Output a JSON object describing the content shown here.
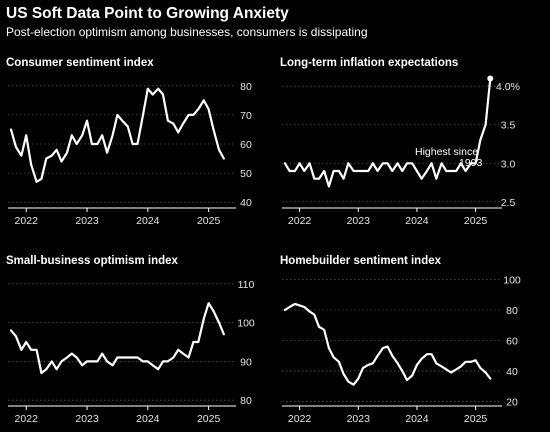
{
  "headline": "US Soft Data Point to Growing Anxiety",
  "subhead": "Post-election optimism among businesses, consumers is dissipating",
  "colors": {
    "background": "#000000",
    "line": "#ffffff",
    "grid": "#555555"
  },
  "chart_data": [
    {
      "type": "line",
      "title": "Consumer sentiment index",
      "xticks": [
        "2022",
        "2023",
        "2024",
        "2025"
      ],
      "xlim": [
        2021.7,
        2025.45
      ],
      "yticks": [
        "40",
        "50",
        "60",
        "70",
        "80"
      ],
      "ylim": [
        38,
        82
      ],
      "series": [
        {
          "x": [
            2021.75,
            2021.83,
            2021.92,
            2022.0,
            2022.08,
            2022.17,
            2022.25,
            2022.33,
            2022.42,
            2022.5,
            2022.58,
            2022.67,
            2022.75,
            2022.83,
            2022.92,
            2023.0,
            2023.08,
            2023.17,
            2023.25,
            2023.33,
            2023.42,
            2023.5,
            2023.58,
            2023.67,
            2023.75,
            2023.83,
            2023.92,
            2024.0,
            2024.08,
            2024.17,
            2024.25,
            2024.33,
            2024.42,
            2024.5,
            2024.58,
            2024.67,
            2024.75,
            2024.83,
            2024.92,
            2025.0,
            2025.08,
            2025.17,
            2025.25
          ],
          "y": [
            65,
            59,
            56,
            63,
            53,
            47,
            48,
            55,
            56,
            58,
            54,
            57,
            63,
            60,
            63,
            68,
            60,
            60,
            63,
            57,
            63,
            70,
            68,
            66,
            60,
            60,
            70,
            79,
            77,
            79,
            77,
            68,
            67,
            64,
            67,
            70,
            70,
            72,
            75,
            72,
            65,
            58,
            55
          ]
        }
      ]
    },
    {
      "type": "line",
      "title": "Long-term inflation expectations",
      "xticks": [
        "2022",
        "2023",
        "2024",
        "2025"
      ],
      "xlim": [
        2021.7,
        2025.45
      ],
      "yticks": [
        "2.5",
        "3.0",
        "3.5",
        "4.0%"
      ],
      "ylim": [
        2.42,
        4.08
      ],
      "annotation": "Highest since 1993",
      "series": [
        {
          "x": [
            2021.75,
            2021.83,
            2021.92,
            2022.0,
            2022.08,
            2022.17,
            2022.25,
            2022.33,
            2022.42,
            2022.5,
            2022.58,
            2022.67,
            2022.75,
            2022.83,
            2022.92,
            2023.0,
            2023.08,
            2023.17,
            2023.25,
            2023.33,
            2023.42,
            2023.5,
            2023.58,
            2023.67,
            2023.75,
            2023.83,
            2023.92,
            2024.0,
            2024.08,
            2024.17,
            2024.25,
            2024.33,
            2024.42,
            2024.5,
            2024.58,
            2024.67,
            2024.75,
            2024.83,
            2024.92,
            2025.0,
            2025.08,
            2025.17,
            2025.25
          ],
          "y": [
            3.0,
            2.9,
            2.9,
            3.0,
            2.9,
            3.0,
            2.8,
            2.8,
            2.9,
            2.7,
            2.9,
            2.9,
            2.8,
            3.0,
            2.9,
            2.9,
            2.9,
            2.9,
            3.0,
            2.9,
            3.0,
            3.0,
            2.9,
            3.0,
            2.9,
            3.0,
            3.0,
            2.9,
            2.8,
            2.9,
            3.0,
            2.8,
            3.0,
            2.9,
            2.9,
            2.9,
            3.0,
            2.9,
            3.0,
            3.0,
            3.3,
            3.5,
            4.1
          ]
        }
      ]
    },
    {
      "type": "line",
      "title": "Small-business optimism index",
      "xticks": [
        "2022",
        "2023",
        "2024",
        "2025"
      ],
      "xlim": [
        2021.7,
        2025.45
      ],
      "yticks": [
        "80",
        "90",
        "100",
        "110"
      ],
      "ylim": [
        78.5,
        111.5
      ],
      "series": [
        {
          "x": [
            2021.75,
            2021.83,
            2021.92,
            2022.0,
            2022.08,
            2022.17,
            2022.25,
            2022.33,
            2022.42,
            2022.5,
            2022.58,
            2022.67,
            2022.75,
            2022.83,
            2022.92,
            2023.0,
            2023.08,
            2023.17,
            2023.25,
            2023.33,
            2023.42,
            2023.5,
            2023.58,
            2023.67,
            2023.75,
            2023.83,
            2023.92,
            2024.0,
            2024.08,
            2024.17,
            2024.25,
            2024.33,
            2024.42,
            2024.5,
            2024.58,
            2024.67,
            2024.75,
            2024.83,
            2024.92,
            2025.0,
            2025.08,
            2025.17,
            2025.25
          ],
          "y": [
            98,
            96.5,
            93,
            95,
            93,
            93,
            87,
            88,
            90,
            88,
            90,
            91,
            92,
            91,
            89,
            90,
            90,
            90,
            92,
            90,
            89,
            91,
            91,
            91,
            91,
            91,
            90,
            90,
            89,
            88,
            90,
            90,
            91,
            93,
            92,
            91,
            95,
            95,
            101,
            105,
            103,
            100,
            97
          ]
        }
      ]
    },
    {
      "type": "line",
      "title": "Homebuilder sentiment index",
      "xticks": [
        "2022",
        "2023",
        "2024",
        "2025"
      ],
      "xlim": [
        2021.7,
        2025.45
      ],
      "yticks": [
        "20",
        "40",
        "60",
        "80",
        "100"
      ],
      "ylim": [
        17,
        101
      ],
      "series": [
        {
          "x": [
            2021.75,
            2021.83,
            2021.92,
            2022.0,
            2022.08,
            2022.17,
            2022.25,
            2022.33,
            2022.42,
            2022.5,
            2022.58,
            2022.67,
            2022.75,
            2022.83,
            2022.92,
            2023.0,
            2023.08,
            2023.17,
            2023.25,
            2023.33,
            2023.42,
            2023.5,
            2023.58,
            2023.67,
            2023.75,
            2023.83,
            2023.92,
            2024.0,
            2024.08,
            2024.17,
            2024.25,
            2024.33,
            2024.42,
            2024.5,
            2024.58,
            2024.67,
            2024.75,
            2024.83,
            2024.92,
            2025.0,
            2025.08,
            2025.17,
            2025.25
          ],
          "y": [
            80,
            82,
            84,
            83,
            82,
            79,
            77,
            69,
            67,
            55,
            49,
            46,
            38,
            33,
            31,
            35,
            42,
            44,
            45,
            50,
            55,
            56,
            50,
            45,
            40,
            34,
            37,
            44,
            48,
            51,
            51,
            45,
            43,
            41,
            39,
            41,
            43,
            46,
            46,
            47,
            42,
            39,
            35
          ]
        }
      ]
    }
  ]
}
